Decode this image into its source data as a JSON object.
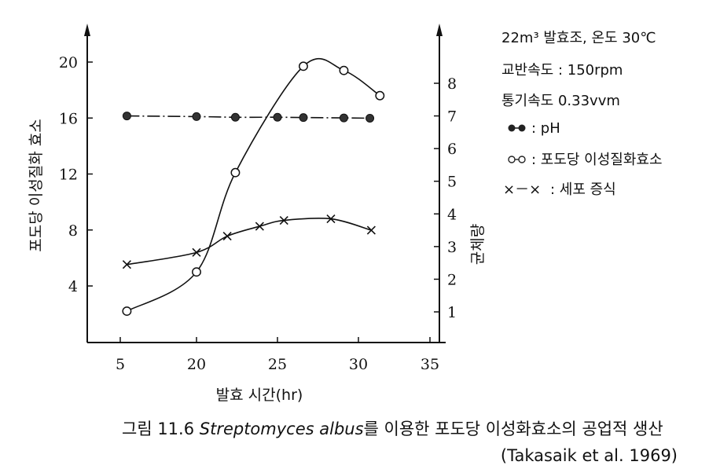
{
  "chart_data": {
    "type": "line",
    "x": {
      "label": "발효 시간(hr)",
      "ticks": [
        5,
        20,
        25,
        30,
        35
      ]
    },
    "y_left": {
      "label": "포도당 이성질화 효소",
      "ticks": [
        4,
        8,
        12,
        16,
        20
      ]
    },
    "y_right": {
      "label": "균체량",
      "ticks": [
        1,
        2,
        3,
        4,
        5,
        6,
        7,
        8
      ]
    },
    "series": [
      {
        "name": "pH",
        "marker": "filled-circle",
        "line": "dash-dot",
        "axis": "right",
        "points": [
          [
            6.3,
            7.0
          ],
          [
            20,
            6.98
          ],
          [
            22.4,
            6.96
          ],
          [
            25,
            6.96
          ],
          [
            26.6,
            6.95
          ],
          [
            29.1,
            6.94
          ],
          [
            30.8,
            6.93
          ]
        ]
      },
      {
        "name": "포도당 이성질화효소",
        "marker": "open-circle",
        "line": "solid",
        "axis": "left",
        "points": [
          [
            6.3,
            2.2
          ],
          [
            20,
            5.0
          ],
          [
            22.4,
            12.1
          ],
          [
            26.6,
            19.7
          ],
          [
            29.1,
            19.4
          ],
          [
            31.5,
            17.6
          ]
        ]
      },
      {
        "name": "세포 증식",
        "marker": "x",
        "line": "solid",
        "axis": "right",
        "points": [
          [
            6.3,
            2.45
          ],
          [
            20,
            2.82
          ],
          [
            21.9,
            3.32
          ],
          [
            23.9,
            3.62
          ],
          [
            25.4,
            3.8
          ],
          [
            28.3,
            3.85
          ],
          [
            30.9,
            3.5
          ]
        ]
      }
    ]
  },
  "legend": {
    "line1": "22m³ 발효조, 온도 30℃",
    "line2": "교반속도 : 150rpm",
    "line3": "통기속도   0.33vvm",
    "ph_label": ": pH",
    "enzyme_label": ": 포도당 이성질화효소",
    "cell_label": ": 세포 증식",
    "cell_marker": "×－×"
  },
  "caption": {
    "prefix": "그림  11.6 ",
    "species": "Streptomyces albus",
    "suffix": "를 이용한 포도당 이성화효소의 공업적 생산",
    "source": "(Takasaik et al. 1969)"
  }
}
